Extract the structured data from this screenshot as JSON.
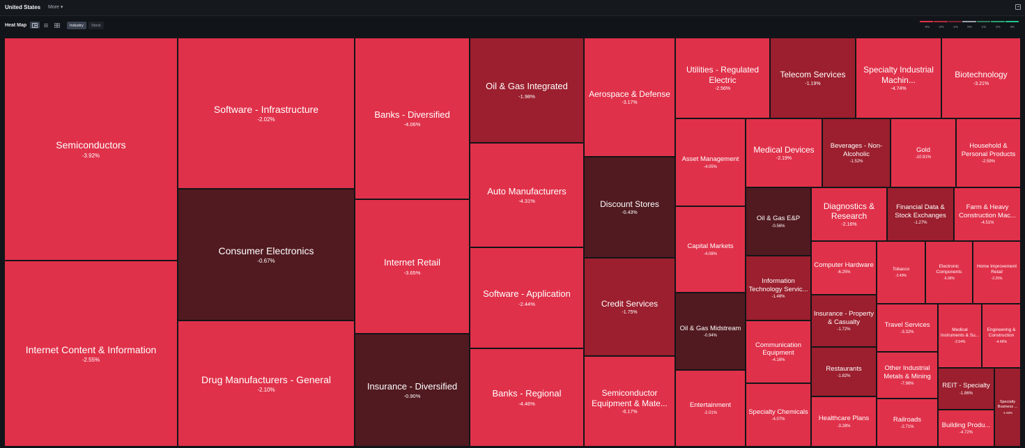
{
  "topbar": {
    "region": "United States",
    "more_label": "More ▾"
  },
  "toolbar": {
    "title": "Heat Map",
    "seg_industry": "Industry",
    "seg_stock": "Stock"
  },
  "legend": {
    "labels": [
      "-3%",
      "-2%",
      "-1%",
      "0%",
      "1%",
      "2%",
      "3%"
    ],
    "colors": [
      "#e0324a",
      "#b52a3c",
      "#7d2230",
      "#9aa1ab",
      "#2f7a5c",
      "#27a372",
      "#22c78b"
    ]
  },
  "colors": {
    "strong_red": "#e0314a",
    "mid_red": "#9b1f2e",
    "dark_red": "#511a20",
    "background": "#111418"
  },
  "tiles": [
    {
      "name": "Semiconductors",
      "change": "-3.92%"
    },
    {
      "name": "Internet Content & Information",
      "change": "-2.55%"
    },
    {
      "name": "Software - Infrastructure",
      "change": "-2.02%"
    },
    {
      "name": "Consumer Electronics",
      "change": "-0.67%"
    },
    {
      "name": "Drug Manufacturers - General",
      "change": "-2.10%"
    },
    {
      "name": "Banks - Diversified",
      "change": "-4.06%"
    },
    {
      "name": "Internet Retail",
      "change": "-3.65%"
    },
    {
      "name": "Insurance - Diversified",
      "change": "-0.90%"
    },
    {
      "name": "Oil & Gas Integrated",
      "change": "-1.98%"
    },
    {
      "name": "Auto Manufacturers",
      "change": "-4.31%"
    },
    {
      "name": "Software - Application",
      "change": "-2.44%"
    },
    {
      "name": "Banks - Regional",
      "change": "-4.46%"
    },
    {
      "name": "Aerospace & Defense",
      "change": "-3.17%"
    },
    {
      "name": "Discount Stores",
      "change": "-0.43%"
    },
    {
      "name": "Credit Services",
      "change": "-1.75%"
    },
    {
      "name": "Semiconductor Equipment & Mate...",
      "change": "-6.17%"
    },
    {
      "name": "Utilities - Regulated Electric",
      "change": "-2.56%"
    },
    {
      "name": "Telecom Services",
      "change": "-1.19%"
    },
    {
      "name": "Specialty Industrial Machin...",
      "change": "-4.74%"
    },
    {
      "name": "Biotechnology",
      "change": "-3.21%"
    },
    {
      "name": "Asset Management",
      "change": "-4.05%"
    },
    {
      "name": "Medical Devices",
      "change": "-2.19%"
    },
    {
      "name": "Beverages - Non-Alcoholic",
      "change": "-1.52%"
    },
    {
      "name": "Gold",
      "change": "-10.91%"
    },
    {
      "name": "Household & Personal Products",
      "change": "-2.59%"
    },
    {
      "name": "Capital Markets",
      "change": "-4.08%"
    },
    {
      "name": "Oil & Gas E&P",
      "change": "-0.56%"
    },
    {
      "name": "Diagnostics & Research",
      "change": "-2.16%"
    },
    {
      "name": "Financial Data & Stock Exchanges",
      "change": "-1.27%"
    },
    {
      "name": "Farm & Heavy Construction Mac...",
      "change": "-4.51%"
    },
    {
      "name": "Information Technology Servic...",
      "change": "-1.48%"
    },
    {
      "name": "Computer Hardware",
      "change": "-6.25%"
    },
    {
      "name": "Tobacco",
      "change": "-2.49%"
    },
    {
      "name": "Electronic Components",
      "change": "-6.36%"
    },
    {
      "name": "Home Improvement Retail",
      "change": "-2.25%"
    },
    {
      "name": "Oil & Gas Midstream",
      "change": "-0.94%"
    },
    {
      "name": "Insurance - Property & Casualty",
      "change": "-1.72%"
    },
    {
      "name": "Travel Services",
      "change": "-3.32%"
    },
    {
      "name": "Communication Equipment",
      "change": "-4.16%"
    },
    {
      "name": "Medical Instruments & Su...",
      "change": "-2.54%"
    },
    {
      "name": "Engineering & Construction",
      "change": "-4.46%"
    },
    {
      "name": "Restaurants",
      "change": "-1.82%"
    },
    {
      "name": "Other Industrial Metals & Mining",
      "change": "-7.96%"
    },
    {
      "name": "REIT - Specialty",
      "change": "-1.86%"
    },
    {
      "name": "Specialty Business ...",
      "change": "-1.93%"
    },
    {
      "name": "Entertainment",
      "change": "-2.01%"
    },
    {
      "name": "Specialty Chemicals",
      "change": "-4.07%"
    },
    {
      "name": "Healthcare Plans",
      "change": "-3.28%"
    },
    {
      "name": "Railroads",
      "change": "-2.71%"
    },
    {
      "name": "Building Produ...",
      "change": "-4.72%"
    }
  ]
}
